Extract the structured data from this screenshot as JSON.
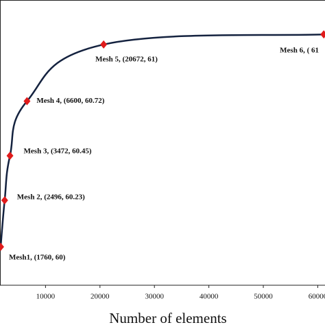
{
  "chart_data": {
    "type": "line",
    "x_label": "Number of elements",
    "x": [
      1760,
      2496,
      3472,
      6600,
      20672,
      61100
    ],
    "series": [
      {
        "color": "#14223f",
        "marker_color": "#e01b1b",
        "values": [
          60,
          60.23,
          60.45,
          60.72,
          61,
          61.05
        ]
      }
    ],
    "annotations": [
      "Mesh1, (1760, 60)",
      "Mesh 2, (2496, 60.23)",
      "Mesh 3, (3472, 60.45)",
      "Mesh 4, (6600, 60.72)",
      "Mesh 5, (20672, 61)",
      "Mesh 6, ( 61"
    ],
    "xlim": [
      1640,
      61330
    ],
    "ylim": [
      59.81,
      61.22
    ],
    "xticks": [
      10000,
      20000,
      30000,
      40000,
      50000,
      60000
    ]
  }
}
